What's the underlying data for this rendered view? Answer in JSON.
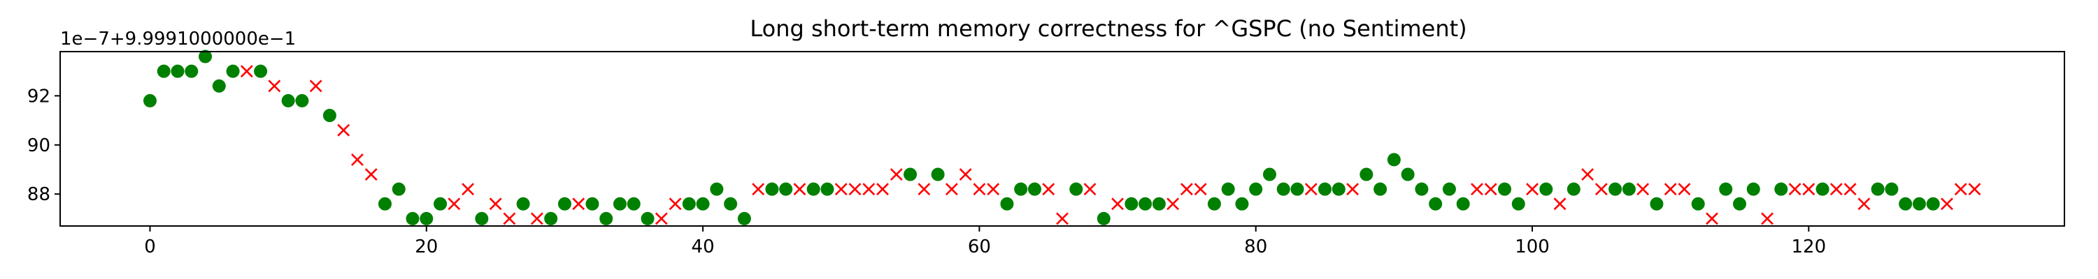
{
  "chart_data": {
    "type": "scatter",
    "title": "Long short-term memory correctness for ^GSPC (no Sentiment)",
    "y_offset_text": "1e−7+9.9991000000e−1",
    "y_tick_labels": [
      "88",
      "90",
      "92"
    ],
    "x_tick_labels": [
      "0",
      "20",
      "40",
      "60",
      "80",
      "100",
      "120"
    ],
    "xlim": [
      -6.5,
      138.5
    ],
    "ylim": [
      86.7,
      93.8
    ],
    "x_ticks": [
      0,
      20,
      40,
      60,
      80,
      100,
      120
    ],
    "y_ticks": [
      88,
      90,
      92
    ],
    "grid": false,
    "colors": {
      "correct": "#008000",
      "incorrect": "#ff0000"
    },
    "markers": {
      "correct": "circle",
      "incorrect": "x"
    },
    "x": [
      0,
      1,
      2,
      3,
      4,
      5,
      6,
      7,
      8,
      9,
      10,
      11,
      12,
      13,
      14,
      15,
      16,
      17,
      18,
      19,
      20,
      21,
      22,
      23,
      24,
      25,
      26,
      27,
      28,
      29,
      30,
      31,
      32,
      33,
      34,
      35,
      36,
      37,
      38,
      39,
      40,
      41,
      42,
      43,
      44,
      45,
      46,
      47,
      48,
      49,
      50,
      51,
      52,
      53,
      54,
      55,
      56,
      57,
      58,
      59,
      60,
      61,
      62,
      63,
      64,
      65,
      66,
      67,
      68,
      69,
      70,
      71,
      72,
      73,
      74,
      75,
      76,
      77,
      78,
      79,
      80,
      81,
      82,
      83,
      84,
      85,
      86,
      87,
      88,
      89,
      90,
      91,
      92,
      93,
      94,
      95,
      96,
      97,
      98,
      99,
      100,
      101,
      102,
      103,
      104,
      105,
      106,
      107,
      108,
      109,
      110,
      111,
      112,
      113,
      114,
      115,
      116,
      117,
      118,
      119,
      120,
      121,
      122,
      123,
      124,
      125,
      126,
      127,
      128,
      129,
      130,
      131,
      132
    ],
    "y": [
      91.8,
      93.0,
      93.0,
      93.0,
      93.6,
      92.4,
      93.0,
      93.0,
      93.0,
      92.4,
      91.8,
      91.8,
      92.4,
      91.2,
      90.6,
      89.4,
      88.8,
      87.6,
      88.2,
      87.0,
      87.0,
      87.6,
      87.6,
      88.2,
      87.0,
      87.6,
      87.0,
      87.6,
      87.0,
      87.0,
      87.6,
      87.6,
      87.6,
      87.0,
      87.6,
      87.6,
      87.0,
      87.0,
      87.6,
      87.6,
      87.6,
      88.2,
      87.6,
      87.0,
      88.2,
      88.2,
      88.2,
      88.2,
      88.2,
      88.2,
      88.2,
      88.2,
      88.2,
      88.2,
      88.8,
      88.8,
      88.2,
      88.8,
      88.2,
      88.8,
      88.2,
      88.2,
      87.6,
      88.2,
      88.2,
      88.2,
      87.0,
      88.2,
      88.2,
      87.0,
      87.6,
      87.6,
      87.6,
      87.6,
      87.6,
      88.2,
      88.2,
      87.6,
      88.2,
      87.6,
      88.2,
      88.8,
      88.2,
      88.2,
      88.2,
      88.2,
      88.2,
      88.2,
      88.8,
      88.2,
      89.4,
      88.8,
      88.2,
      87.6,
      88.2,
      87.6,
      88.2,
      88.2,
      88.2,
      87.6,
      88.2,
      88.2,
      87.6,
      88.2,
      88.8,
      88.2,
      88.2,
      88.2,
      88.2,
      87.6,
      88.2,
      88.2,
      87.6,
      87.0,
      88.2,
      87.6,
      88.2,
      87.0,
      88.2,
      88.2,
      88.2,
      88.2,
      88.2,
      88.2,
      87.6,
      88.2,
      88.2,
      87.6,
      87.6,
      87.6,
      87.6,
      88.2,
      88.2
    ],
    "correct": [
      1,
      1,
      1,
      1,
      1,
      1,
      1,
      0,
      1,
      0,
      1,
      1,
      0,
      1,
      0,
      0,
      0,
      1,
      1,
      1,
      1,
      1,
      0,
      0,
      1,
      0,
      0,
      1,
      0,
      1,
      1,
      0,
      1,
      1,
      1,
      1,
      1,
      0,
      0,
      1,
      1,
      1,
      1,
      1,
      0,
      1,
      1,
      0,
      1,
      1,
      0,
      0,
      0,
      0,
      0,
      1,
      0,
      1,
      0,
      0,
      0,
      0,
      1,
      1,
      1,
      0,
      0,
      1,
      0,
      1,
      0,
      1,
      1,
      1,
      0,
      0,
      0,
      1,
      1,
      1,
      1,
      1,
      1,
      1,
      0,
      1,
      1,
      0,
      1,
      1,
      1,
      1,
      1,
      1,
      1,
      1,
      0,
      0,
      1,
      1,
      0,
      1,
      0,
      1,
      0,
      0,
      1,
      1,
      0,
      1,
      0,
      0,
      1,
      0,
      1,
      1,
      1,
      0,
      1,
      0,
      0,
      1,
      0,
      0,
      0,
      1,
      1,
      1,
      1,
      1,
      0,
      0,
      0
    ]
  }
}
